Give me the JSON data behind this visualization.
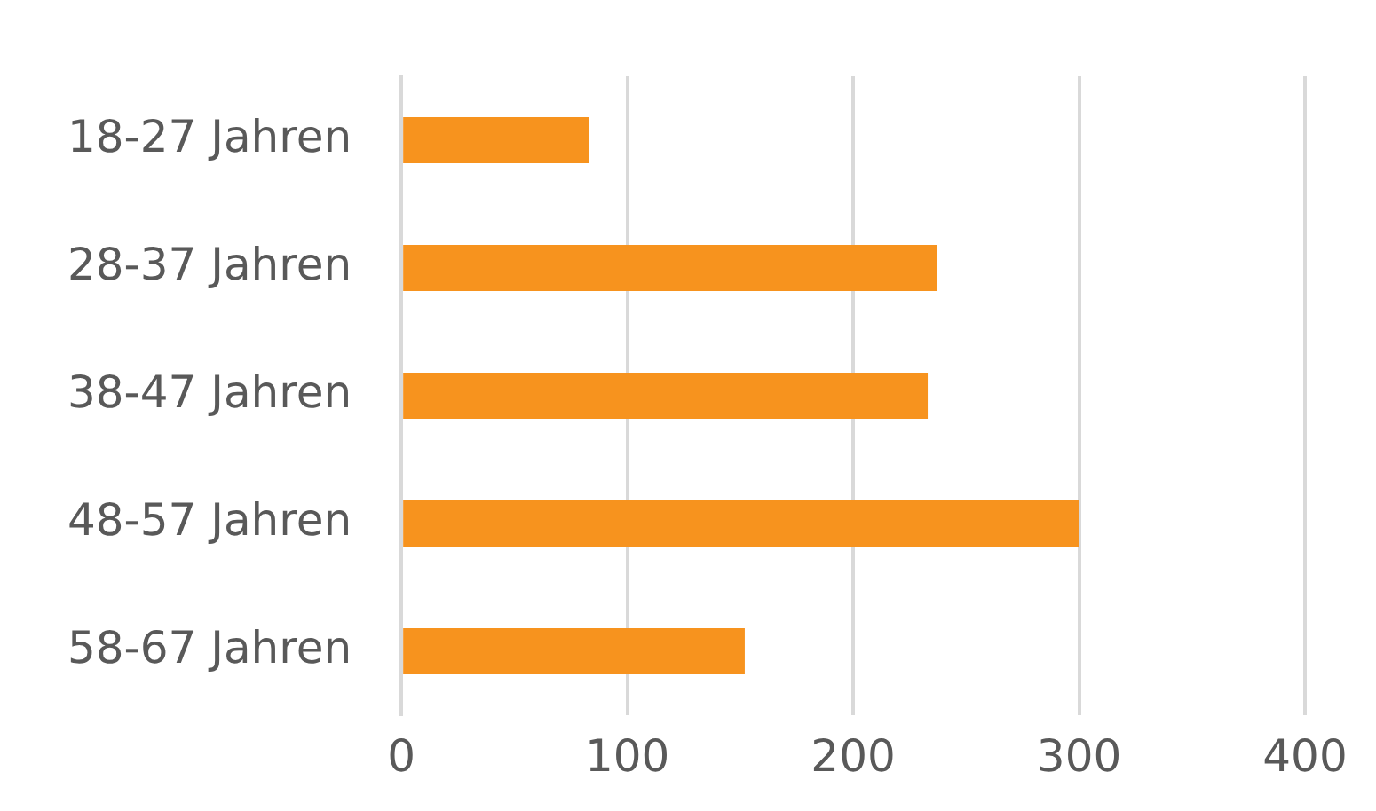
{
  "chart_data": {
    "type": "bar",
    "orientation": "horizontal",
    "categories": [
      "18-27 Jahren",
      "28-37 Jahren",
      "38-47 Jahren",
      "48-57 Jahren",
      "58-67 Jahren"
    ],
    "values": [
      83,
      237,
      233,
      300,
      152
    ],
    "color": "#f7931e",
    "xlim": [
      0,
      400
    ],
    "xticks": [
      0,
      100,
      200,
      300,
      400
    ],
    "grid": "x",
    "legend": false
  }
}
